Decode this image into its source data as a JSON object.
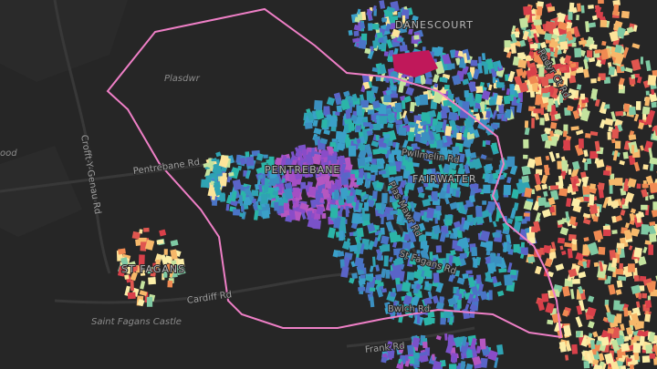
{
  "labels": {
    "plasdwr": "Plasdwr",
    "danescourt": "DANESCOURT",
    "radyr_ct_rd": "Radyr Ct Rd",
    "wood": "ood",
    "pentrebane_rd": "Pentrebane Rd",
    "pentrebane": "PENTREBANE",
    "pwllmelin_rd": "Pwllmelin Rd",
    "fairwater": "FAIRWATER",
    "plas_mawr_rd": "Plas Mawr Rd",
    "crofft": "Crofft-Y-Genau Rd",
    "st_fagans": "ST FAGANS",
    "st_fagans_rd": "St Fagans Rd",
    "cardiff_rd": "Cardiff Rd",
    "bwlch_rd": "Bwlch Rd",
    "castle": "Saint Fagans Castle",
    "frank_rd": "Frank Rd"
  }
}
